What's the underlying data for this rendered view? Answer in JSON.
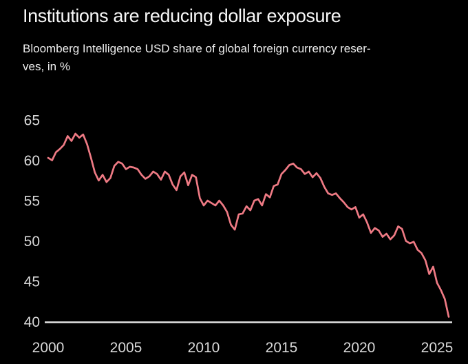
{
  "page": {
    "title": "Institutions are reducing dollar exposure",
    "subtitle_line1": "Bloomberg Intelligence USD share of global foreign currency reser-",
    "subtitle_line2": "ves, in %"
  },
  "colors": {
    "background": "#000000",
    "title_text": "#f7f7f7",
    "subtitle_text": "#eeeeee",
    "axis_text": "#d9d9d9",
    "axis_line": "#e6e6e6",
    "series_line": "#ee7a84"
  },
  "chart_data": {
    "type": "line",
    "title": "Institutions are reducing dollar exposure",
    "subtitle": "Bloomberg Intelligence USD share of global foreign currency reserves, in %",
    "xlabel": "",
    "ylabel": "",
    "x_ticks": [
      "2000",
      "2005",
      "2010",
      "2015",
      "2020",
      "2025"
    ],
    "y_ticks": [
      "65",
      "60",
      "55",
      "50",
      "45",
      "40"
    ],
    "y_tick_values": [
      65,
      60,
      55,
      50,
      45,
      40
    ],
    "x_tick_values": [
      2000,
      2005,
      2010,
      2015,
      2020,
      2025
    ],
    "xlim": [
      2000,
      2026.2
    ],
    "ylim": [
      40,
      65
    ],
    "grid": false,
    "legend": "none",
    "series": [
      {
        "name": "USD share of global foreign currency reserves, %",
        "start_year": 2000,
        "step_years": 0.25,
        "values": [
          60.3,
          60.0,
          61.0,
          61.4,
          61.9,
          63.0,
          62.4,
          63.3,
          62.8,
          63.2,
          62.0,
          60.3,
          58.5,
          57.5,
          58.2,
          57.3,
          57.8,
          59.3,
          59.8,
          59.6,
          58.9,
          59.2,
          59.1,
          58.9,
          58.2,
          57.7,
          58.0,
          58.6,
          58.3,
          57.6,
          58.6,
          58.2,
          57.0,
          56.3,
          58.0,
          58.5,
          56.9,
          58.2,
          57.9,
          55.3,
          54.4,
          55.0,
          54.7,
          54.4,
          55.0,
          54.4,
          53.6,
          52.0,
          51.4,
          53.3,
          53.4,
          54.3,
          53.8,
          55.0,
          55.2,
          54.4,
          55.8,
          55.4,
          56.8,
          57.0,
          58.3,
          58.8,
          59.4,
          59.6,
          59.1,
          58.9,
          58.3,
          58.6,
          57.9,
          58.4,
          57.8,
          56.7,
          55.9,
          55.7,
          55.9,
          55.3,
          54.8,
          54.2,
          53.9,
          54.2,
          52.9,
          53.3,
          52.3,
          51.0,
          51.6,
          51.3,
          50.5,
          50.9,
          50.2,
          50.7,
          51.8,
          51.5,
          50.0,
          49.7,
          49.9,
          48.9,
          48.5,
          47.6,
          45.9,
          46.8,
          44.8,
          43.9,
          42.8,
          40.6
        ]
      }
    ]
  }
}
